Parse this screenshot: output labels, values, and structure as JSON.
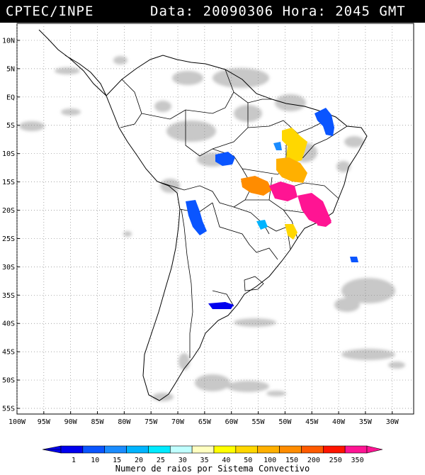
{
  "header": {
    "source": "CPTEC/INPE",
    "datetime": "Data: 20090306 Hora: 2045 GMT"
  },
  "map": {
    "lat_range": [
      -56,
      13
    ],
    "lon_range": [
      -100,
      -26
    ],
    "lat_ticks": [
      "10N",
      "5N",
      "EQ",
      "5S",
      "10S",
      "15S",
      "20S",
      "25S",
      "30S",
      "35S",
      "40S",
      "45S",
      "50S",
      "55S"
    ],
    "lon_ticks": [
      "100W",
      "95W",
      "90W",
      "85W",
      "80W",
      "75W",
      "70W",
      "65W",
      "60W",
      "55W",
      "50W",
      "45W",
      "40W",
      "35W",
      "30W"
    ]
  },
  "legend": {
    "values": [
      "1",
      "10",
      "15",
      "20",
      "25",
      "30",
      "35",
      "40",
      "50",
      "100",
      "150",
      "200",
      "250",
      "350"
    ],
    "colors": [
      "#0000ee",
      "#0a55ff",
      "#1a8cff",
      "#00b4ff",
      "#00eaff",
      "#bfffff",
      "#ffffc0",
      "#ffff00",
      "#ffd700",
      "#ffb000",
      "#ff8c00",
      "#ff5a00",
      "#ff1400",
      "#ff1493"
    ],
    "label": "Numero de raios por Sistema Convectivo"
  }
}
